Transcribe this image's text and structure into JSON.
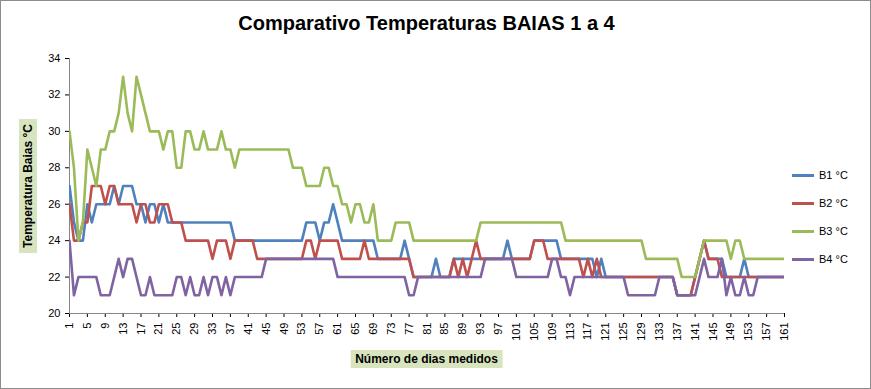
{
  "chart_data": {
    "type": "line",
    "title": "Comparativo Temperaturas BAIAS 1 a 4",
    "x_label": "Número de dias medidos",
    "y_label": "Temperatura Baias °C",
    "x": [
      1,
      2,
      3,
      4,
      5,
      6,
      7,
      8,
      9,
      10,
      11,
      12,
      13,
      14,
      15,
      16,
      17,
      18,
      19,
      20,
      21,
      22,
      23,
      24,
      25,
      26,
      27,
      28,
      29,
      30,
      31,
      32,
      33,
      34,
      35,
      36,
      37,
      38,
      39,
      40,
      41,
      42,
      43,
      44,
      45,
      46,
      47,
      48,
      49,
      50,
      51,
      52,
      53,
      54,
      55,
      56,
      57,
      58,
      59,
      60,
      61,
      62,
      63,
      64,
      65,
      66,
      67,
      68,
      69,
      70,
      71,
      72,
      73,
      74,
      75,
      76,
      77,
      78,
      79,
      80,
      81,
      82,
      83,
      84,
      85,
      86,
      87,
      88,
      89,
      90,
      91,
      92,
      93,
      94,
      95,
      96,
      97,
      98,
      99,
      100,
      101,
      102,
      103,
      104,
      105,
      106,
      107,
      108,
      109,
      110,
      111,
      112,
      113,
      114,
      115,
      116,
      117,
      118,
      119,
      120,
      121,
      122,
      123,
      124,
      125,
      126,
      127,
      128,
      129,
      130,
      131,
      132,
      133,
      134,
      135,
      136,
      137,
      138,
      139,
      140,
      141,
      142,
      143,
      144,
      145,
      146,
      147,
      148,
      149,
      150,
      151,
      152,
      153,
      154,
      155,
      156,
      157,
      158,
      159,
      160,
      161
    ],
    "xlim": [
      1,
      161
    ],
    "xticks": [
      1,
      5,
      9,
      13,
      17,
      21,
      25,
      29,
      33,
      37,
      41,
      45,
      49,
      53,
      57,
      61,
      65,
      69,
      73,
      77,
      81,
      85,
      89,
      93,
      97,
      101,
      105,
      109,
      113,
      117,
      121,
      125,
      129,
      133,
      137,
      141,
      145,
      149,
      153,
      157,
      161
    ],
    "ylim": [
      20,
      34
    ],
    "yticks": [
      20,
      22,
      24,
      26,
      28,
      30,
      32,
      34
    ],
    "grid": false,
    "legend": "right",
    "series": [
      {
        "name": "B1 °C",
        "color": "#4f81bd",
        "values": [
          27,
          25,
          24,
          24,
          26,
          25,
          26,
          26,
          26,
          26,
          27,
          26,
          27,
          27,
          27,
          26,
          26,
          25,
          26,
          26,
          25,
          26,
          25,
          25,
          25,
          25,
          25,
          25,
          25,
          25,
          25,
          25,
          25,
          25,
          25,
          25,
          25,
          24,
          24,
          24,
          24,
          24,
          24,
          24,
          24,
          24,
          24,
          24,
          24,
          24,
          24,
          24,
          24,
          25,
          25,
          25,
          24,
          25,
          25,
          26,
          25,
          24,
          24,
          24,
          24,
          24,
          24,
          24,
          24,
          23,
          23,
          23,
          23,
          23,
          23,
          24,
          23,
          22,
          22,
          22,
          22,
          22,
          23,
          22,
          22,
          22,
          23,
          23,
          23,
          23,
          23,
          23,
          23,
          23,
          23,
          23,
          23,
          23,
          24,
          23,
          23,
          23,
          23,
          23,
          24,
          24,
          24,
          24,
          24,
          24,
          23,
          23,
          23,
          23,
          23,
          23,
          23,
          23,
          22,
          23,
          22,
          22,
          22,
          22,
          22,
          22,
          22,
          22,
          22,
          22,
          22,
          22,
          22,
          22,
          22,
          22,
          21,
          21,
          21,
          21,
          22,
          23,
          24,
          23,
          23,
          23,
          23,
          22,
          22,
          22,
          22,
          23,
          22,
          22,
          22,
          22,
          22,
          22,
          22,
          22,
          22
        ]
      },
      {
        "name": "B2 °C",
        "color": "#c0504d",
        "values": [
          26,
          24,
          24,
          25,
          25,
          27,
          27,
          27,
          26,
          27,
          27,
          26,
          26,
          26,
          26,
          25,
          26,
          26,
          25,
          25,
          26,
          26,
          26,
          25,
          25,
          25,
          24,
          24,
          24,
          24,
          24,
          24,
          23,
          24,
          24,
          24,
          23,
          24,
          24,
          24,
          24,
          24,
          23,
          23,
          23,
          23,
          23,
          23,
          23,
          23,
          23,
          23,
          23,
          24,
          24,
          23,
          24,
          24,
          24,
          24,
          24,
          23,
          23,
          23,
          23,
          23,
          24,
          23,
          23,
          23,
          23,
          23,
          23,
          23,
          23,
          23,
          23,
          22,
          22,
          22,
          22,
          22,
          22,
          22,
          22,
          22,
          23,
          22,
          23,
          22,
          23,
          24,
          23,
          23,
          23,
          23,
          23,
          23,
          23,
          23,
          23,
          23,
          23,
          23,
          24,
          24,
          24,
          23,
          23,
          23,
          23,
          23,
          23,
          23,
          23,
          22,
          23,
          22,
          23,
          22,
          22,
          22,
          22,
          22,
          22,
          22,
          22,
          22,
          22,
          22,
          22,
          22,
          22,
          22,
          22,
          22,
          21,
          21,
          21,
          21,
          22,
          23,
          24,
          23,
          23,
          23,
          22,
          22,
          22,
          22,
          22,
          22,
          22,
          22,
          22,
          22,
          22,
          22,
          22,
          22,
          22
        ]
      },
      {
        "name": "B3 °C",
        "color": "#9bbb59",
        "values": [
          30,
          28,
          24,
          25,
          29,
          28,
          27,
          29,
          29,
          30,
          30,
          31,
          33,
          31,
          30,
          33,
          32,
          31,
          30,
          30,
          30,
          29,
          30,
          30,
          28,
          28,
          30,
          30,
          29,
          29,
          30,
          29,
          29,
          29,
          30,
          29,
          29,
          28,
          29,
          29,
          29,
          29,
          29,
          29,
          29,
          29,
          29,
          29,
          29,
          29,
          28,
          28,
          28,
          27,
          27,
          27,
          27,
          28,
          28,
          27,
          27,
          26,
          26,
          25,
          26,
          26,
          25,
          25,
          26,
          24,
          24,
          24,
          24,
          25,
          25,
          25,
          25,
          24,
          24,
          24,
          24,
          24,
          24,
          24,
          24,
          24,
          24,
          24,
          24,
          24,
          24,
          24,
          25,
          25,
          25,
          25,
          25,
          25,
          25,
          25,
          25,
          25,
          25,
          25,
          25,
          25,
          25,
          25,
          25,
          25,
          25,
          24,
          24,
          24,
          24,
          24,
          24,
          24,
          24,
          24,
          24,
          24,
          24,
          24,
          24,
          24,
          24,
          24,
          24,
          23,
          23,
          23,
          23,
          23,
          23,
          23,
          23,
          22,
          22,
          22,
          22,
          23,
          24,
          24,
          24,
          24,
          24,
          24,
          23,
          24,
          24,
          23,
          23,
          23,
          23,
          23,
          23,
          23,
          23,
          23,
          23
        ]
      },
      {
        "name": "B4 °C",
        "color": "#8064a2",
        "values": [
          24,
          21,
          22,
          22,
          22,
          22,
          22,
          21,
          21,
          21,
          22,
          23,
          22,
          23,
          23,
          22,
          21,
          21,
          22,
          21,
          21,
          21,
          21,
          21,
          22,
          22,
          21,
          22,
          21,
          21,
          22,
          21,
          22,
          22,
          21,
          22,
          21,
          22,
          22,
          22,
          22,
          22,
          22,
          22,
          23,
          23,
          23,
          23,
          23,
          23,
          23,
          23,
          23,
          23,
          23,
          23,
          23,
          23,
          23,
          23,
          22,
          22,
          22,
          22,
          22,
          22,
          22,
          22,
          22,
          22,
          22,
          22,
          22,
          22,
          22,
          22,
          21,
          21,
          22,
          22,
          22,
          22,
          22,
          22,
          22,
          22,
          22,
          22,
          22,
          22,
          22,
          22,
          22,
          23,
          23,
          23,
          23,
          23,
          23,
          23,
          22,
          22,
          22,
          22,
          22,
          22,
          22,
          22,
          23,
          23,
          22,
          22,
          21,
          22,
          22,
          22,
          22,
          22,
          22,
          22,
          22,
          22,
          22,
          22,
          22,
          21,
          21,
          21,
          21,
          21,
          21,
          21,
          22,
          22,
          22,
          22,
          21,
          21,
          21,
          21,
          21,
          22,
          23,
          22,
          22,
          22,
          23,
          21,
          22,
          21,
          21,
          22,
          21,
          21,
          22,
          22,
          22,
          22,
          22,
          22,
          22
        ]
      }
    ]
  }
}
